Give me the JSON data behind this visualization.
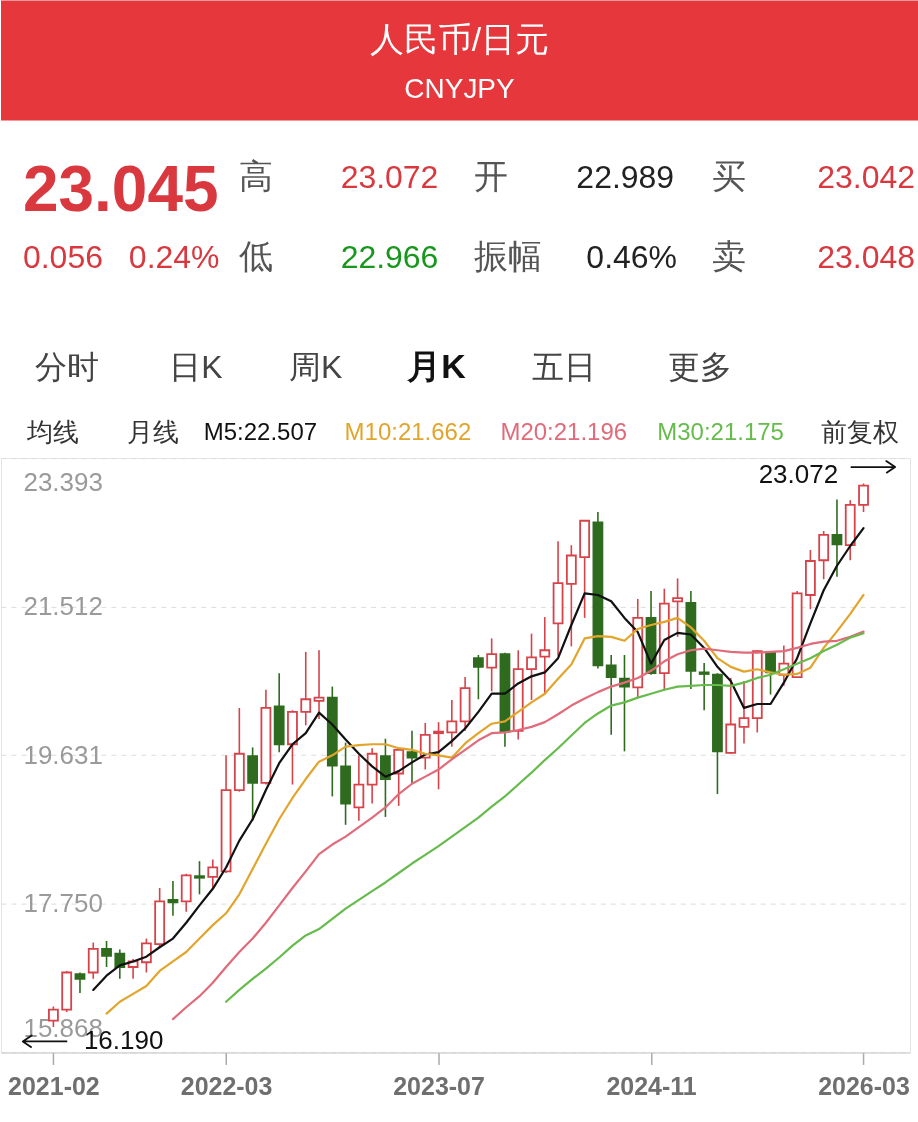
{
  "chart_data": {
    "type": "candlestick",
    "title": "人民币/日元",
    "subtitle": "CNYJPY",
    "categories": [
      "2021-02",
      null,
      null,
      null,
      null,
      null,
      null,
      null,
      null,
      null,
      null,
      null,
      null,
      "2022-03",
      null,
      null,
      null,
      null,
      null,
      null,
      null,
      null,
      null,
      null,
      null,
      null,
      null,
      null,
      null,
      "2023-07",
      null,
      null,
      null,
      null,
      null,
      null,
      null,
      null,
      null,
      null,
      null,
      null,
      null,
      null,
      null,
      "2024-11",
      null,
      null,
      null,
      null,
      null,
      null,
      null,
      null,
      null,
      null,
      null,
      null,
      null,
      null,
      null,
      "2026-03"
    ],
    "ohlc": [
      [
        16.27,
        16.45,
        16.19,
        16.41
      ],
      [
        16.41,
        16.9,
        16.38,
        16.88
      ],
      [
        16.86,
        16.88,
        16.62,
        16.8
      ],
      [
        16.88,
        17.26,
        16.8,
        17.18
      ],
      [
        17.18,
        17.28,
        16.95,
        17.09
      ],
      [
        17.12,
        17.17,
        16.8,
        16.95
      ],
      [
        16.95,
        17.05,
        16.8,
        17.02
      ],
      [
        17.01,
        17.31,
        16.88,
        17.25
      ],
      [
        17.24,
        17.95,
        17.19,
        17.78
      ],
      [
        17.8,
        18.04,
        17.6,
        17.77
      ],
      [
        17.78,
        18.13,
        17.65,
        18.11
      ],
      [
        18.1,
        18.29,
        17.87,
        18.08
      ],
      [
        18.09,
        18.31,
        17.94,
        18.21
      ],
      [
        18.16,
        19.63,
        18.14,
        19.19
      ],
      [
        19.19,
        20.23,
        19.17,
        19.65
      ],
      [
        19.62,
        19.73,
        18.8,
        19.28
      ],
      [
        19.28,
        20.46,
        19.26,
        20.23
      ],
      [
        20.25,
        20.67,
        19.67,
        19.77
      ],
      [
        19.77,
        20.2,
        19.26,
        20.18
      ],
      [
        20.18,
        20.94,
        20.01,
        20.34
      ],
      [
        20.32,
        20.96,
        20.09,
        20.36
      ],
      [
        20.36,
        20.5,
        19.11,
        19.5
      ],
      [
        19.49,
        19.79,
        18.75,
        19.02
      ],
      [
        18.97,
        19.63,
        18.8,
        19.26
      ],
      [
        19.26,
        19.72,
        19.02,
        19.65
      ],
      [
        19.62,
        19.84,
        18.85,
        19.33
      ],
      [
        19.4,
        19.72,
        18.99,
        19.7
      ],
      [
        19.67,
        19.94,
        19.28,
        19.6
      ],
      [
        19.6,
        20.04,
        19.45,
        19.89
      ],
      [
        19.91,
        20.05,
        19.2,
        19.93
      ],
      [
        19.92,
        20.33,
        19.74,
        20.06
      ],
      [
        20.06,
        20.62,
        19.94,
        20.48
      ],
      [
        20.86,
        20.9,
        20.34,
        20.75
      ],
      [
        20.74,
        21.11,
        20.44,
        20.91
      ],
      [
        20.91,
        20.93,
        19.74,
        19.93
      ],
      [
        19.94,
        20.96,
        19.83,
        20.72
      ],
      [
        20.72,
        21.17,
        20.33,
        20.87
      ],
      [
        20.88,
        21.38,
        20.4,
        20.96
      ],
      [
        21.3,
        22.34,
        20.89,
        21.81
      ],
      [
        21.8,
        22.29,
        21.01,
        22.16
      ],
      [
        22.14,
        22.61,
        21.37,
        22.6
      ],
      [
        22.58,
        22.71,
        20.73,
        20.77
      ],
      [
        20.77,
        20.9,
        19.89,
        20.62
      ],
      [
        20.6,
        20.9,
        19.68,
        20.5
      ],
      [
        20.49,
        21.61,
        20.36,
        21.37
      ],
      [
        21.37,
        21.71,
        20.65,
        20.67
      ],
      [
        20.67,
        21.74,
        20.45,
        21.55
      ],
      [
        21.58,
        21.87,
        21.13,
        21.62
      ],
      [
        21.56,
        21.71,
        20.47,
        20.7
      ],
      [
        20.68,
        20.8,
        20.2,
        20.66
      ],
      [
        20.65,
        20.67,
        19.14,
        19.68
      ],
      [
        19.66,
        20.61,
        19.65,
        20.02
      ],
      [
        19.99,
        20.57,
        19.78,
        20.1
      ],
      [
        20.1,
        20.96,
        19.92,
        20.95
      ],
      [
        20.93,
        20.95,
        20.4,
        20.68
      ],
      [
        20.65,
        21.02,
        20.51,
        20.79
      ],
      [
        20.62,
        21.71,
        20.61,
        21.68
      ],
      [
        21.66,
        22.23,
        21.48,
        22.09
      ],
      [
        22.1,
        22.47,
        21.86,
        22.42
      ],
      [
        22.42,
        22.87,
        21.89,
        22.3
      ],
      [
        22.29,
        22.86,
        22.1,
        22.8
      ],
      [
        22.8,
        23.072,
        22.71,
        23.045
      ]
    ],
    "colors": [
      "#d6434a",
      "#d6434a",
      "#2e6b1f",
      "#d6434a",
      "#2e6b1f",
      "#2e6b1f",
      "#d6434a",
      "#d6434a",
      "#d6434a",
      "#2e6b1f",
      "#d6434a",
      "#2e6b1f",
      "#d6434a",
      "#d6434a",
      "#d6434a",
      "#2e6b1f",
      "#d6434a",
      "#2e6b1f",
      "#d6434a",
      "#d6434a",
      "#d6434a",
      "#2e6b1f",
      "#2e6b1f",
      "#d6434a",
      "#d6434a",
      "#2e6b1f",
      "#d6434a",
      "#2e6b1f",
      "#d6434a",
      "#d6434a",
      "#d6434a",
      "#d6434a",
      "#2e6b1f",
      "#d6434a",
      "#2e6b1f",
      "#d6434a",
      "#d6434a",
      "#d6434a",
      "#d6434a",
      "#d6434a",
      "#d6434a",
      "#2e6b1f",
      "#2e6b1f",
      "#2e6b1f",
      "#d6434a",
      "#2e6b1f",
      "#d6434a",
      "#d6434a",
      "#2e6b1f",
      "#2e6b1f",
      "#2e6b1f",
      "#d6434a",
      "#d6434a",
      "#d6434a",
      "#2e6b1f",
      "#d6434a",
      "#d6434a",
      "#d6434a",
      "#d6434a",
      "#2e6b1f",
      "#d6434a",
      "#d6434a"
    ],
    "series": [
      {
        "name": "M5:22.507",
        "type": "line",
        "color": "#111111",
        "values": [
          null,
          null,
          null,
          16.66,
          16.84,
          16.97,
          17.02,
          17.08,
          17.2,
          17.31,
          17.51,
          17.73,
          17.94,
          18.21,
          18.55,
          18.82,
          19.19,
          19.53,
          19.77,
          19.91,
          20.17,
          20.02,
          19.83,
          19.65,
          19.49,
          19.36,
          19.43,
          19.54,
          19.64,
          19.67,
          19.81,
          19.97,
          20.18,
          20.41,
          20.41,
          20.54,
          20.63,
          20.68,
          20.86,
          21.28,
          21.68,
          21.66,
          21.58,
          21.37,
          21.19,
          20.79,
          21.09,
          21.18,
          21.16,
          20.99,
          20.75,
          20.57,
          20.23,
          20.28,
          20.28,
          20.55,
          20.86,
          21.3,
          21.72,
          22.03,
          22.28,
          22.507
        ]
      },
      {
        "name": "M10:21.662",
        "type": "line",
        "color": "#e2a52c",
        "values": [
          null,
          null,
          null,
          null,
          16.36,
          16.51,
          16.61,
          16.71,
          16.9,
          17.02,
          17.14,
          17.31,
          17.48,
          17.63,
          17.87,
          18.19,
          18.51,
          18.82,
          19.09,
          19.33,
          19.55,
          19.63,
          19.74,
          19.76,
          19.77,
          19.77,
          19.72,
          19.7,
          19.65,
          19.63,
          19.6,
          19.78,
          19.91,
          20.03,
          20.06,
          20.18,
          20.3,
          20.41,
          20.6,
          20.78,
          21.11,
          21.14,
          21.13,
          21.08,
          21.23,
          21.28,
          21.32,
          21.37,
          21.25,
          21.08,
          20.86,
          20.75,
          20.69,
          20.72,
          20.68,
          20.65,
          20.66,
          20.74,
          20.99,
          21.2,
          21.42,
          21.662
        ]
      },
      {
        "name": "M20:21.196",
        "type": "line",
        "color": "#e06b7a",
        "values": [
          null,
          null,
          null,
          null,
          null,
          null,
          null,
          null,
          null,
          16.29,
          16.44,
          16.58,
          16.75,
          16.95,
          17.14,
          17.31,
          17.51,
          17.73,
          17.95,
          18.16,
          18.38,
          18.5,
          18.6,
          18.72,
          18.84,
          18.97,
          19.14,
          19.27,
          19.36,
          19.45,
          19.58,
          19.7,
          19.82,
          19.91,
          19.92,
          19.95,
          19.99,
          20.05,
          20.15,
          20.26,
          20.35,
          20.43,
          20.5,
          20.55,
          20.61,
          20.7,
          20.82,
          20.91,
          20.96,
          20.98,
          20.96,
          20.94,
          20.93,
          20.93,
          20.94,
          20.95,
          20.99,
          21.04,
          21.07,
          21.08,
          21.13,
          21.196
        ]
      },
      {
        "name": "M30:21.175",
        "type": "line",
        "color": "#66bb4c",
        "values": [
          null,
          null,
          null,
          null,
          null,
          null,
          null,
          null,
          null,
          null,
          null,
          null,
          null,
          16.51,
          16.66,
          16.8,
          16.93,
          17.07,
          17.22,
          17.35,
          17.43,
          17.56,
          17.69,
          17.8,
          17.91,
          18.02,
          18.14,
          18.26,
          18.37,
          18.48,
          18.6,
          18.72,
          18.84,
          18.98,
          19.11,
          19.26,
          19.41,
          19.57,
          19.72,
          19.88,
          20.04,
          20.16,
          20.26,
          20.3,
          20.36,
          20.41,
          20.46,
          20.5,
          20.51,
          20.52,
          20.52,
          20.51,
          20.55,
          20.61,
          20.65,
          20.72,
          20.79,
          20.86,
          20.95,
          21.03,
          21.12,
          21.175
        ]
      }
    ],
    "ylim": [
      15.868,
      23.393
    ],
    "yticks": [
      15.868,
      {
        "value": 17.75,
        "label": "17.750"
      },
      19.631,
      21.512,
      23.393
    ],
    "grid": "y",
    "legend": "top",
    "line_style": "solid",
    "annotations": [
      "23.045",
      "高",
      "23.072",
      "开",
      "22.989",
      "买",
      "23.042",
      "0.056",
      "0.24%",
      "低",
      "22.966",
      "振幅",
      "0.46%",
      "卖",
      "23.048",
      "分时",
      "日K",
      "周K",
      "月K",
      "五日",
      "更多",
      "均线",
      "月线",
      "前复权",
      "23.072",
      "16.190"
    ]
  }
}
